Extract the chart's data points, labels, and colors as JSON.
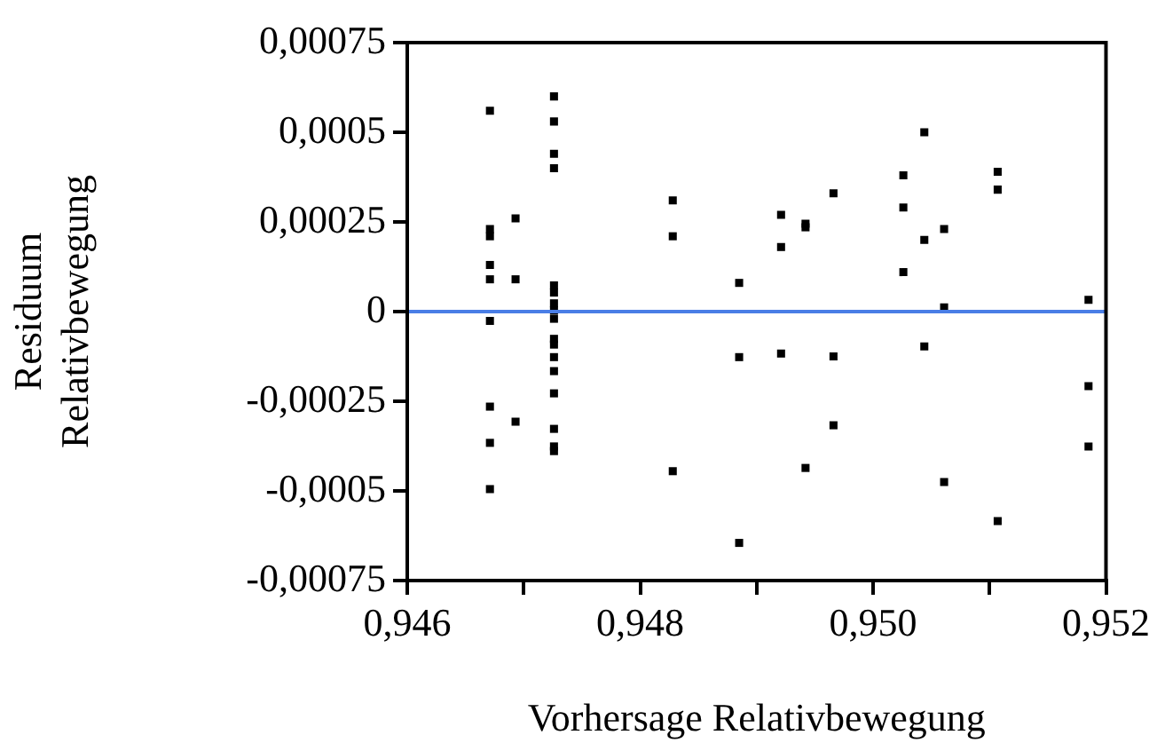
{
  "chart_data": {
    "type": "scatter",
    "xlabel": "Vorhersage Relativbewegung",
    "ylabel": "Residuum\nRelativbewegung",
    "xlim": [
      0.946,
      0.952
    ],
    "xticks": [
      {
        "value": 0.946,
        "label": "0,946"
      },
      {
        "value": 0.947,
        "label": null
      },
      {
        "value": 0.948,
        "label": "0,948"
      },
      {
        "value": 0.949,
        "label": null
      },
      {
        "value": 0.95,
        "label": "0,950"
      },
      {
        "value": 0.951,
        "label": null
      },
      {
        "value": 0.952,
        "label": "0,952"
      }
    ],
    "ylim": [
      -0.00075,
      0.00075
    ],
    "yticks": [
      {
        "value": -0.00075,
        "label": "-0,00075"
      },
      {
        "value": -0.0005,
        "label": "-0,0005"
      },
      {
        "value": -0.00025,
        "label": "-0,00025"
      },
      {
        "value": 0,
        "label": "0"
      },
      {
        "value": 0.00025,
        "label": "0,00025"
      },
      {
        "value": 0.0005,
        "label": "0,0005"
      },
      {
        "value": 0.00075,
        "label": "0,00075"
      }
    ],
    "grid": false,
    "marker": "square",
    "legend": false,
    "ref_lines": [
      {
        "axis": "y",
        "value": 0,
        "color": "#4a7ee6"
      }
    ],
    "series": [
      {
        "color": "#000000",
        "x": [
          0.94671,
          0.94671,
          0.94671,
          0.94671,
          0.94671,
          0.94671,
          0.94671,
          0.94671,
          0.94671,
          0.94693,
          0.94693,
          0.94693,
          0.94726,
          0.94726,
          0.94726,
          0.94726,
          0.94726,
          0.94726,
          0.94726,
          0.94726,
          0.94726,
          0.94726,
          0.94726,
          0.94726,
          0.94726,
          0.94726,
          0.94726,
          0.94726,
          0.94726,
          0.94828,
          0.94828,
          0.94828,
          0.94885,
          0.94885,
          0.94885,
          0.94921,
          0.94921,
          0.94921,
          0.94942,
          0.94942,
          0.94942,
          0.94966,
          0.94966,
          0.94966,
          0.95026,
          0.95026,
          0.95026,
          0.95044,
          0.95044,
          0.95044,
          0.95061,
          0.95061,
          0.95061,
          0.95107,
          0.95107,
          0.95107,
          0.95185,
          0.95185,
          0.95185
        ],
        "values": [
          0.00056,
          0.00023,
          0.00021,
          0.00013,
          9e-05,
          -2.6e-05,
          -0.000265,
          -0.000366,
          -0.000495,
          0.00026,
          9e-05,
          -0.000307,
          0.0006,
          0.00053,
          0.00044,
          0.0004,
          7.3e-05,
          5.3e-05,
          2.3e-05,
          3e-06,
          -2e-05,
          -7.6e-05,
          -9.2e-05,
          -0.000127,
          -0.000166,
          -0.000228,
          -0.000327,
          -0.000376,
          -0.000389,
          0.00031,
          0.00021,
          -0.000445,
          8e-05,
          -0.000127,
          -0.000645,
          0.00027,
          0.00018,
          -0.000117,
          0.000245,
          0.000235,
          -0.000436,
          0.00033,
          -0.000125,
          -0.000317,
          0.00038,
          0.00029,
          0.00011,
          0.0005,
          0.0002,
          -9.7e-05,
          0.00023,
          1.2e-05,
          -0.000475,
          0.00039,
          0.00034,
          -0.000584,
          3.3e-05,
          -0.000208,
          -0.000376
        ]
      }
    ]
  }
}
